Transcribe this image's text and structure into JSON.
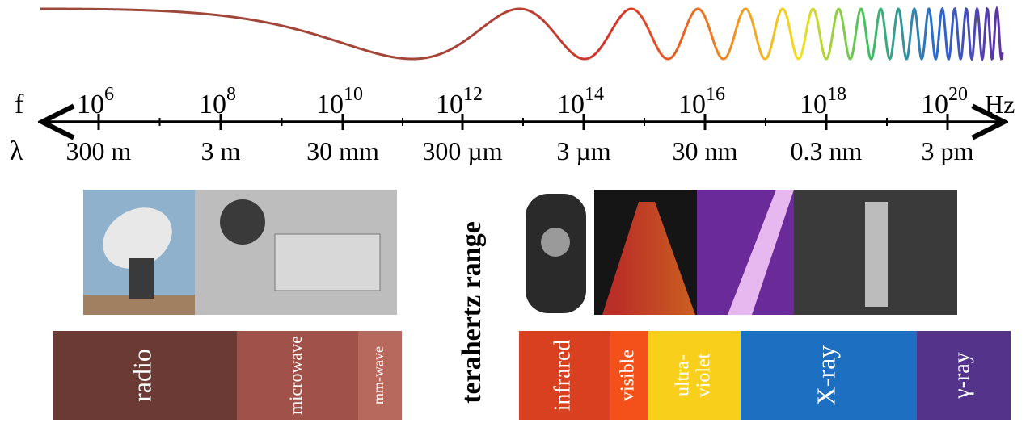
{
  "axis": {
    "frequency_symbol": "f",
    "wavelength_symbol": "λ",
    "frequency_unit": "Hz",
    "frequencies": [
      {
        "base": "10",
        "exponent": "6"
      },
      {
        "base": "10",
        "exponent": "8"
      },
      {
        "base": "10",
        "exponent": "10"
      },
      {
        "base": "10",
        "exponent": "12"
      },
      {
        "base": "10",
        "exponent": "14"
      },
      {
        "base": "10",
        "exponent": "16"
      },
      {
        "base": "10",
        "exponent": "18"
      },
      {
        "base": "10",
        "exponent": "20"
      }
    ],
    "wavelengths": [
      "300 m",
      "3 m",
      "30 mm",
      "300 µm",
      "3 µm",
      "30 nm",
      "0.3 nm",
      "3 pm"
    ]
  },
  "terahertz_label": "terahertz range",
  "bands": [
    [
      "radio"
    ],
    [
      "microwave"
    ],
    [
      "mm-wave"
    ],
    [
      "infrared"
    ],
    [
      "visible"
    ],
    [
      "ultra-",
      "violet"
    ],
    [
      "X-ray"
    ],
    [
      "γ-ray"
    ]
  ]
}
